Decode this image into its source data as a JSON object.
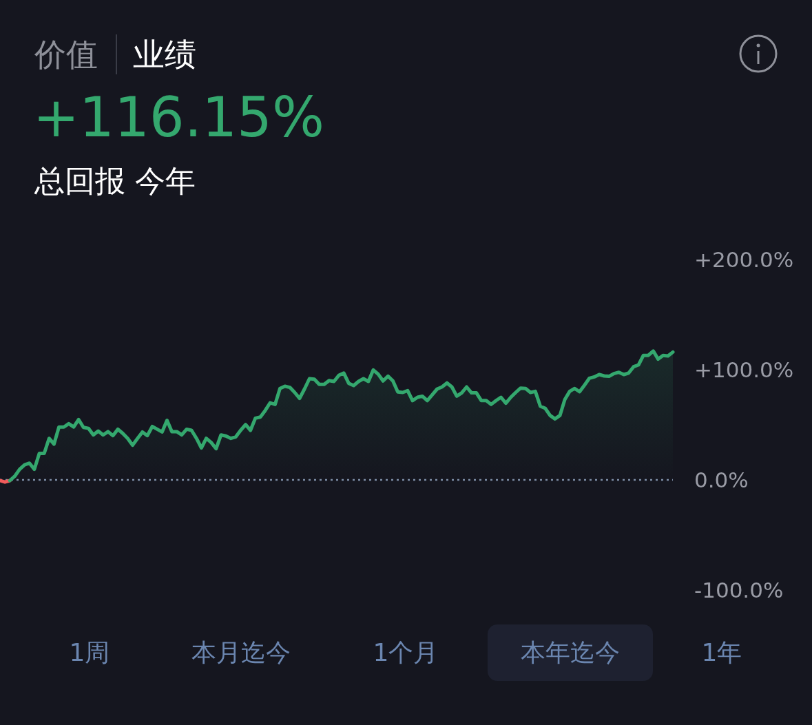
{
  "chart_data": {
    "type": "line",
    "title": "+116.15%",
    "subtitle": "总回报 今年",
    "annotations": [
      "价值",
      "业绩",
      "1周",
      "本月迄今",
      "1个月",
      "本年迄今",
      "1年"
    ],
    "categories": [
      null,
      null,
      null,
      null,
      null,
      null,
      null,
      null,
      null,
      null,
      null,
      null,
      null,
      null,
      null,
      null,
      null,
      null,
      null,
      null,
      null,
      null,
      null,
      null,
      null,
      null,
      null,
      null,
      null,
      null,
      null,
      null,
      null,
      null,
      null,
      null,
      null,
      null,
      null,
      null,
      null,
      null,
      null,
      null,
      null,
      null,
      null,
      null,
      null,
      null,
      null,
      null,
      null,
      null,
      null,
      null,
      null,
      null,
      null,
      null,
      null,
      null,
      null,
      null,
      null,
      null,
      null,
      null,
      null,
      null,
      null,
      null,
      null,
      null,
      null,
      null,
      null,
      null,
      null,
      null,
      null,
      null,
      null,
      null,
      null,
      null,
      null,
      null,
      null,
      null,
      null,
      null,
      null,
      null,
      null,
      null,
      null,
      null,
      null,
      null,
      null,
      null,
      null,
      null,
      null,
      null,
      null,
      null,
      null,
      null,
      null,
      null,
      null,
      null,
      null,
      null,
      null,
      null,
      null,
      null,
      null,
      null,
      null,
      null,
      null,
      null,
      null,
      null,
      null,
      null,
      null,
      null,
      null,
      null,
      null,
      null,
      null,
      null
    ],
    "series": [
      {
        "type": "line",
        "color": "#f25c5c",
        "values": [
          -0.6,
          -2,
          -0.6,
          null,
          null,
          null,
          null,
          null,
          null,
          null,
          null,
          null,
          null,
          null,
          null,
          null,
          null,
          null,
          null,
          null,
          null,
          null,
          null,
          null,
          null,
          null,
          null,
          null,
          null,
          null,
          null,
          null,
          null,
          null,
          null,
          null,
          null,
          null,
          null,
          null,
          null,
          null,
          null,
          null,
          null,
          null,
          null,
          null,
          null,
          null,
          null,
          null,
          null,
          null,
          null,
          null,
          null,
          null,
          null,
          null,
          null,
          null,
          null,
          null,
          null,
          null,
          null,
          null,
          null,
          null,
          null,
          null,
          null,
          null,
          null,
          null,
          null,
          null,
          null,
          null,
          null,
          null,
          null,
          null,
          null,
          null,
          null,
          null,
          null,
          null,
          null,
          null,
          null,
          null,
          null,
          null,
          null,
          null,
          null,
          null,
          null,
          null,
          null,
          null,
          null,
          null,
          null,
          null,
          null,
          null,
          null,
          null,
          null,
          null,
          null,
          null,
          null,
          null,
          null,
          null,
          null,
          null,
          null,
          null,
          null,
          null,
          null,
          null,
          null,
          null,
          null,
          null,
          null,
          null,
          null,
          null,
          null,
          null
        ]
      },
      {
        "type": "area",
        "color": "#34a86e",
        "values": [
          null,
          null,
          -0.6,
          3.3,
          9.6,
          13.7,
          15.2,
          9.6,
          24,
          24,
          37.7,
          32.5,
          48,
          48,
          51,
          48,
          54.8,
          47.7,
          46.8,
          40.8,
          44.4,
          40.8,
          43.8,
          40.2,
          46,
          42.2,
          37.7,
          31.5,
          37.7,
          43.5,
          40.2,
          48.5,
          46,
          43.5,
          54,
          43.8,
          43.8,
          40.8,
          46,
          45,
          37.7,
          29,
          37.7,
          34,
          28.3,
          40.8,
          39.8,
          37.7,
          39,
          45,
          50.2,
          45,
          56,
          57,
          63,
          70,
          68.5,
          83,
          85,
          84,
          79.4,
          74,
          82.5,
          91.9,
          91.4,
          86.7,
          86.7,
          90.2,
          89.4,
          95,
          97,
          87.7,
          85.6,
          89.4,
          91.9,
          89.4,
          99.8,
          96,
          89.8,
          94.2,
          89.8,
          79.8,
          79.4,
          81,
          72,
          75,
          76,
          72,
          77.3,
          82.5,
          84.4,
          88,
          84.4,
          76,
          79,
          84.4,
          79,
          79,
          72,
          72,
          68.5,
          72,
          75,
          69.6,
          75,
          79.4,
          83.3,
          83,
          79.4,
          80.4,
          66.9,
          65,
          58.5,
          55.4,
          58.5,
          73,
          80.4,
          83,
          80,
          86,
          92.3,
          93.5,
          95.6,
          94.4,
          94,
          96.5,
          97.7,
          95.6,
          97,
          102.7,
          104.4,
          113,
          113,
          117,
          109.6,
          113,
          112.5,
          116
        ]
      }
    ],
    "ylim": [
      -100,
      200
    ],
    "yticks": [
      {
        "value": 200,
        "label": "+200.0%"
      },
      {
        "value": 100,
        "label": "+100.0%"
      },
      {
        "value": 0,
        "label": "0.0%"
      },
      {
        "value": -100,
        "label": "-100.0%"
      }
    ],
    "ref_lines": [
      {
        "axis": "y",
        "value": 0,
        "color": "#7d8ea6",
        "line_style": "dotted"
      }
    ],
    "grid": false,
    "marker": "none",
    "line_style": "solid"
  }
}
